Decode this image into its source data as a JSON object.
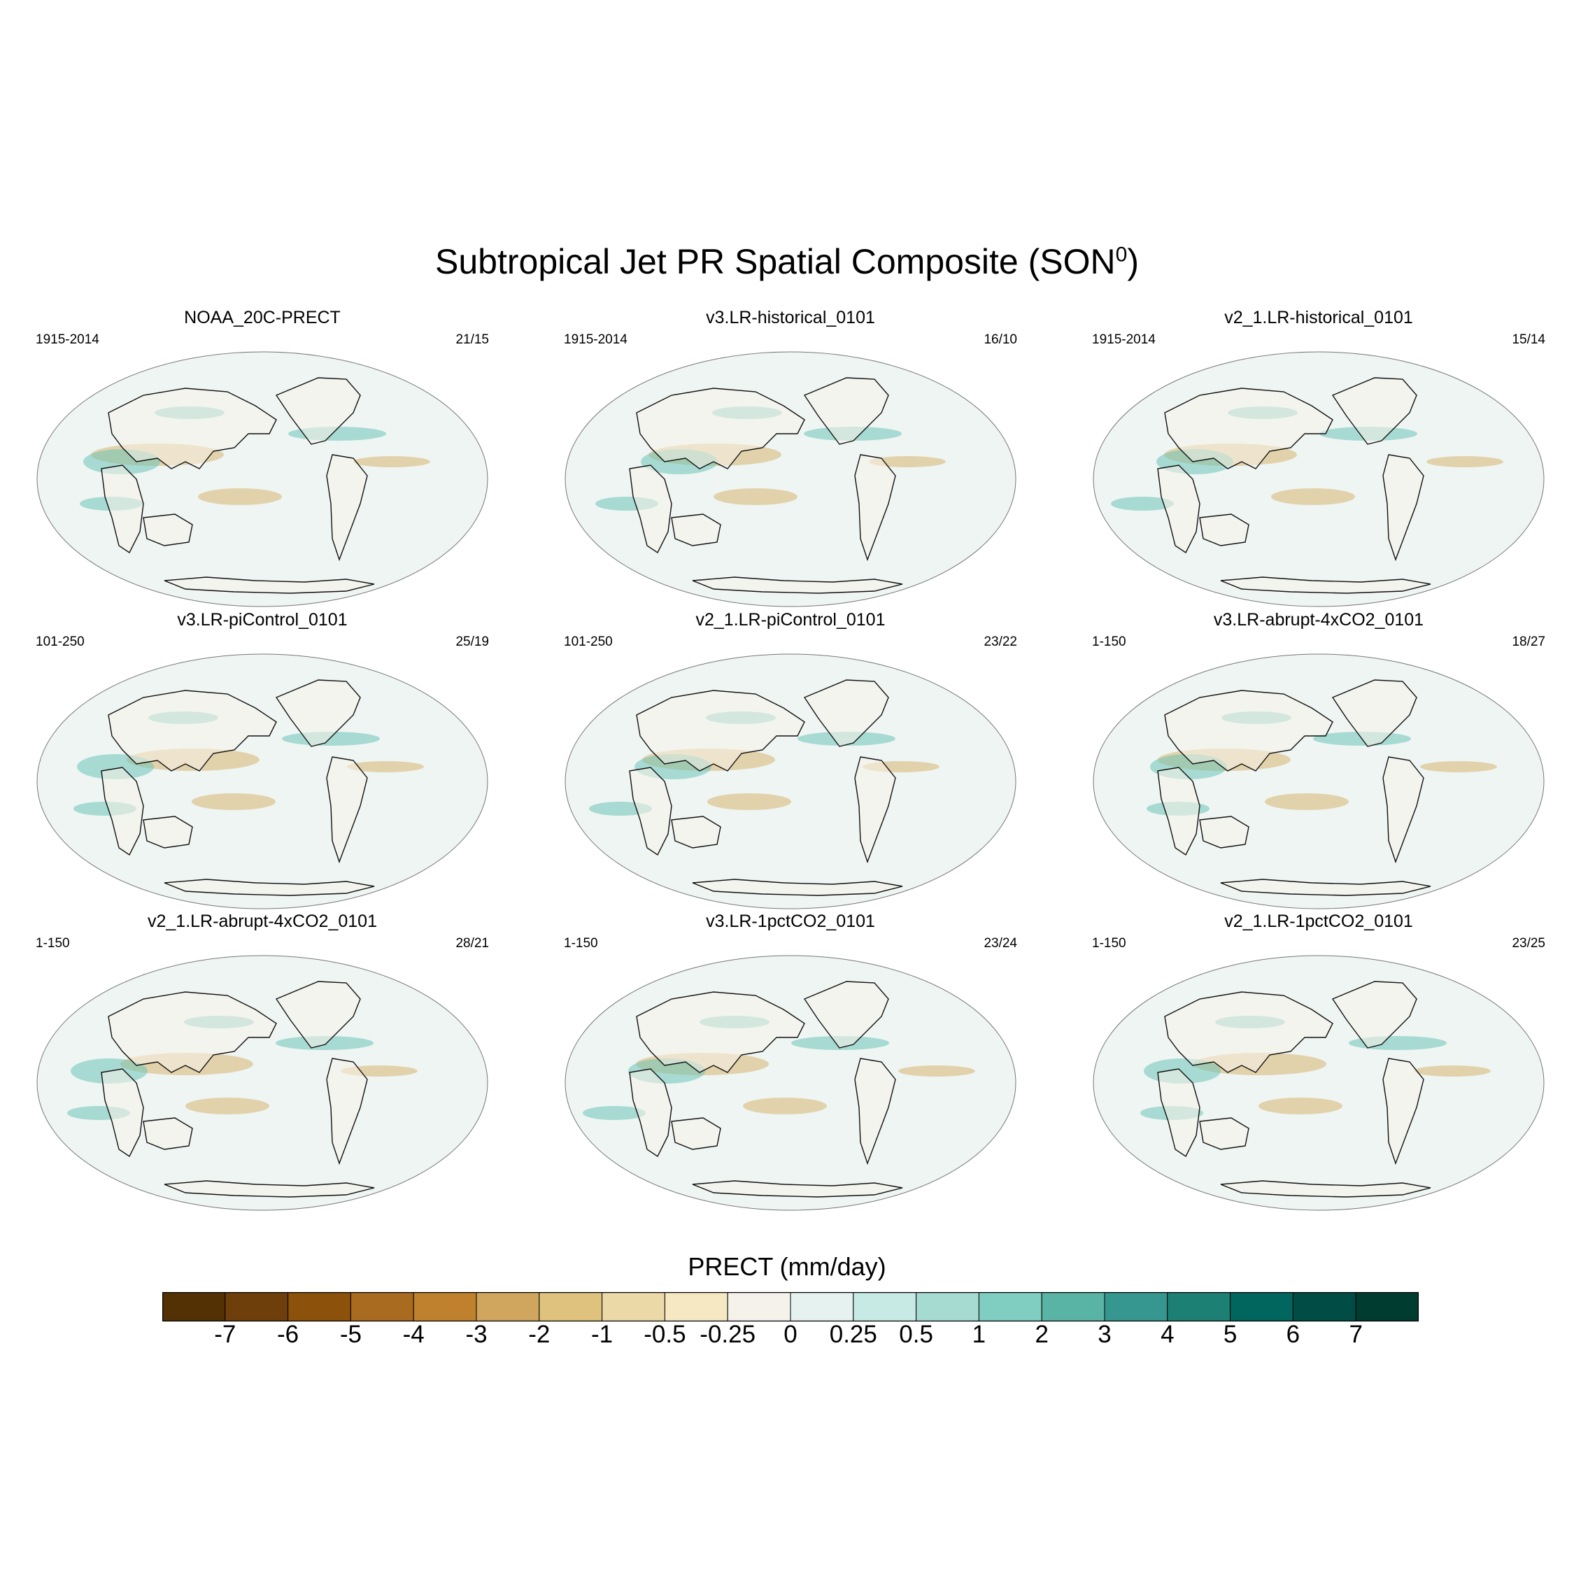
{
  "title": "Subtropical Jet PR Spatial Composite (SON",
  "title_sup": "0",
  "title_close": ")",
  "panels": [
    {
      "name": "NOAA_20C-PRECT",
      "years": "1915-2014",
      "count": "21/15"
    },
    {
      "name": "v3.LR-historical_0101",
      "years": "1915-2014",
      "count": "16/10"
    },
    {
      "name": "v2_1.LR-historical_0101",
      "years": "1915-2014",
      "count": "15/14"
    },
    {
      "name": "v3.LR-piControl_0101",
      "years": "101-250",
      "count": "25/19"
    },
    {
      "name": "v2_1.LR-piControl_0101",
      "years": "101-250",
      "count": "23/22"
    },
    {
      "name": "v3.LR-abrupt-4xCO2_0101",
      "years": "1-150",
      "count": "18/27"
    },
    {
      "name": "v2_1.LR-abrupt-4xCO2_0101",
      "years": "1-150",
      "count": "28/21"
    },
    {
      "name": "v3.LR-1pctCO2_0101",
      "years": "1-150",
      "count": "23/24"
    },
    {
      "name": "v2_1.LR-1pctCO2_0101",
      "years": "1-150",
      "count": "23/25"
    }
  ],
  "colorbar": {
    "title": "PRECT (mm/day)",
    "labels": [
      "-7",
      "-6",
      "-5",
      "-4",
      "-3",
      "-2",
      "-1",
      "-0.5",
      "-0.25",
      "0",
      "0.25",
      "0.5",
      "1",
      "2",
      "3",
      "4",
      "5",
      "6",
      "7"
    ],
    "colors": [
      "#543005",
      "#6e3f0a",
      "#8c510a",
      "#a96b20",
      "#bf812d",
      "#d0a55e",
      "#dfc27d",
      "#ecd9a8",
      "#f6e8c3",
      "#f5f2ec",
      "#e6f2f0",
      "#c7eae5",
      "#a6dbd1",
      "#80cdc1",
      "#5ab4a6",
      "#35978f",
      "#1d8075",
      "#01665e",
      "#014d45",
      "#003c30"
    ]
  },
  "map_colors": {
    "land": "#f7f3ea",
    "ocean": "#eef5f3",
    "dry": "#d9b56f",
    "wet": "#6cc3b6",
    "coast": "#111111",
    "outline": "#777777"
  }
}
